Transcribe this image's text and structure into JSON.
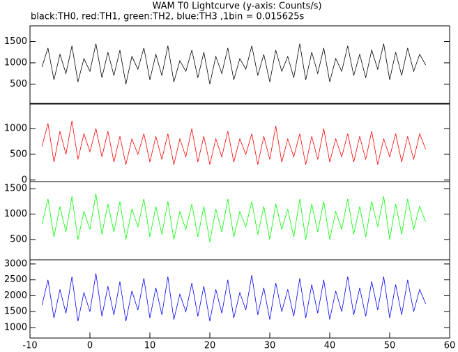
{
  "chart_data": [
    {
      "type": "line",
      "title": "WAM T0 Lightcurve (y-axis: Counts/s)",
      "subtitle": "black:TH0, red:TH1, green:TH2, blue:TH3 ,1bin = 0.015625s",
      "x": [
        -8,
        -7,
        -6,
        -5,
        -4,
        -3,
        -2,
        -1,
        0,
        1,
        2,
        3,
        4,
        5,
        6,
        7,
        8,
        9,
        10,
        11,
        12,
        13,
        14,
        15,
        16,
        17,
        18,
        19,
        20,
        21,
        22,
        23,
        24,
        25,
        26,
        27,
        28,
        29,
        30,
        31,
        32,
        33,
        34,
        35,
        36,
        37,
        38,
        39,
        40,
        41,
        42,
        43,
        44,
        45,
        46,
        47,
        48,
        49,
        50,
        51,
        52,
        53,
        54,
        55,
        56
      ],
      "series": [
        {
          "name": "TH0",
          "color": "#000000",
          "values": [
            900,
            1350,
            600,
            1200,
            750,
            1400,
            550,
            1100,
            800,
            1450,
            650,
            1250,
            700,
            1300,
            500,
            1150,
            850,
            1350,
            600,
            1200,
            700,
            1400,
            550,
            1050,
            800,
            1300,
            650,
            1250,
            500,
            1150,
            750,
            1350,
            600,
            1100,
            850,
            1400,
            700,
            1200,
            550,
            1300,
            800,
            1150,
            650,
            1450,
            600,
            1250,
            750,
            1350,
            550,
            1100,
            800,
            1400,
            700,
            1200,
            650,
            1300,
            850,
            1450,
            600,
            1250,
            700,
            1350,
            800,
            1200,
            950
          ]
        }
      ],
      "xlim": [
        -10,
        60
      ],
      "ylim": [
        30,
        1870
      ],
      "yticks": [
        500,
        1000,
        1500
      ]
    },
    {
      "type": "line",
      "x": [
        -8,
        -7,
        -6,
        -5,
        -4,
        -3,
        -2,
        -1,
        0,
        1,
        2,
        3,
        4,
        5,
        6,
        7,
        8,
        9,
        10,
        11,
        12,
        13,
        14,
        15,
        16,
        17,
        18,
        19,
        20,
        21,
        22,
        23,
        24,
        25,
        26,
        27,
        28,
        29,
        30,
        31,
        32,
        33,
        34,
        35,
        36,
        37,
        38,
        39,
        40,
        41,
        42,
        43,
        44,
        45,
        46,
        47,
        48,
        49,
        50,
        51,
        52,
        53,
        54,
        55,
        56
      ],
      "series": [
        {
          "name": "TH1",
          "color": "#ff0000",
          "values": [
            650,
            1100,
            350,
            950,
            500,
            1150,
            400,
            900,
            550,
            1000,
            450,
            950,
            350,
            850,
            300,
            800,
            500,
            900,
            350,
            850,
            400,
            900,
            300,
            800,
            450,
            1000,
            350,
            850,
            300,
            800,
            450,
            950,
            350,
            800,
            500,
            900,
            300,
            850,
            400,
            1050,
            350,
            800,
            450,
            900,
            300,
            850,
            400,
            1000,
            350,
            800,
            450,
            900,
            350,
            850,
            400,
            950,
            300,
            800,
            450,
            900,
            350,
            850,
            400,
            900,
            600
          ]
        }
      ],
      "xlim": [
        -10,
        60
      ],
      "ylim": [
        -30,
        1490
      ],
      "yticks": [
        0,
        500,
        1000
      ]
    },
    {
      "type": "line",
      "x": [
        -8,
        -7,
        -6,
        -5,
        -4,
        -3,
        -2,
        -1,
        0,
        1,
        2,
        3,
        4,
        5,
        6,
        7,
        8,
        9,
        10,
        11,
        12,
        13,
        14,
        15,
        16,
        17,
        18,
        19,
        20,
        21,
        22,
        23,
        24,
        25,
        26,
        27,
        28,
        29,
        30,
        31,
        32,
        33,
        34,
        35,
        36,
        37,
        38,
        39,
        40,
        41,
        42,
        43,
        44,
        45,
        46,
        47,
        48,
        49,
        50,
        51,
        52,
        53,
        54,
        55,
        56
      ],
      "series": [
        {
          "name": "TH2",
          "color": "#00ff00",
          "values": [
            800,
            1300,
            550,
            1150,
            650,
            1350,
            500,
            1050,
            700,
            1400,
            600,
            1200,
            650,
            1250,
            500,
            1100,
            750,
            1300,
            550,
            1150,
            600,
            1250,
            500,
            1050,
            700,
            1200,
            550,
            1150,
            450,
            1100,
            650,
            1300,
            550,
            1050,
            750,
            1250,
            600,
            1150,
            500,
            1200,
            700,
            1100,
            550,
            1300,
            500,
            1200,
            650,
            1250,
            500,
            1050,
            700,
            1300,
            600,
            1150,
            550,
            1250,
            750,
            1350,
            500,
            1200,
            600,
            1300,
            700,
            1150,
            850
          ]
        }
      ],
      "xlim": [
        -10,
        60
      ],
      "ylim": [
        100,
        1640
      ],
      "yticks": [
        500,
        1000,
        1500
      ]
    },
    {
      "type": "line",
      "x": [
        -8,
        -7,
        -6,
        -5,
        -4,
        -3,
        -2,
        -1,
        0,
        1,
        2,
        3,
        4,
        5,
        6,
        7,
        8,
        9,
        10,
        11,
        12,
        13,
        14,
        15,
        16,
        17,
        18,
        19,
        20,
        21,
        22,
        23,
        24,
        25,
        26,
        27,
        28,
        29,
        30,
        31,
        32,
        33,
        34,
        35,
        36,
        37,
        38,
        39,
        40,
        41,
        42,
        43,
        44,
        45,
        46,
        47,
        48,
        49,
        50,
        51,
        52,
        53,
        54,
        55,
        56
      ],
      "series": [
        {
          "name": "TH3",
          "color": "#0000ff",
          "values": [
            1700,
            2500,
            1300,
            2200,
            1450,
            2600,
            1200,
            2100,
            1500,
            2700,
            1350,
            2300,
            1400,
            2450,
            1200,
            2150,
            1550,
            2550,
            1300,
            2250,
            1400,
            2600,
            1250,
            2050,
            1500,
            2400,
            1350,
            2300,
            1200,
            2200,
            1450,
            2500,
            1300,
            2100,
            1550,
            2650,
            1400,
            2250,
            1250,
            2400,
            1500,
            2200,
            1350,
            2550,
            1300,
            2350,
            1450,
            2500,
            1250,
            2150,
            1500,
            2600,
            1400,
            2250,
            1350,
            2450,
            1550,
            2600,
            1300,
            2350,
            1400,
            2500,
            1500,
            2200,
            1750
          ]
        }
      ],
      "xlim": [
        -10,
        60
      ],
      "ylim": [
        670,
        3130
      ],
      "yticks": [
        1000,
        1500,
        2000,
        2500,
        3000
      ],
      "xticks": [
        -10,
        0,
        10,
        20,
        30,
        40,
        50,
        60
      ]
    }
  ]
}
